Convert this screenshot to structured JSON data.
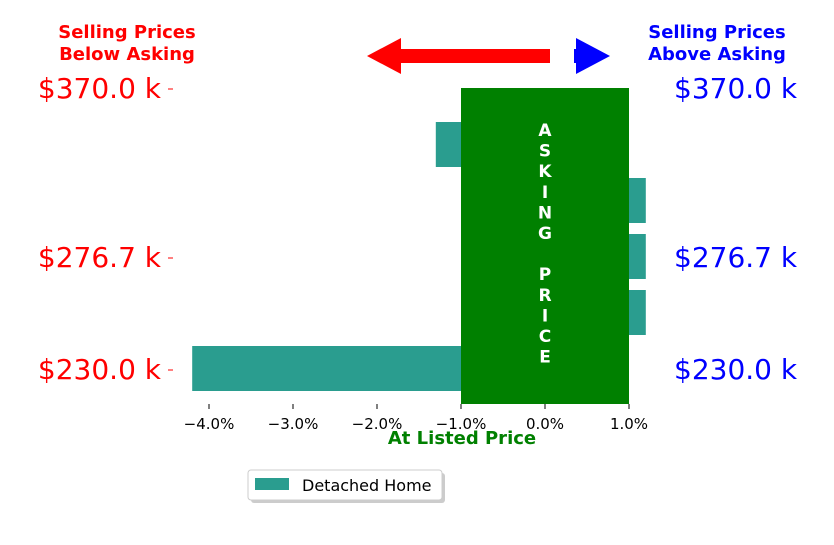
{
  "header": {
    "left_title": [
      "Selling Prices",
      "Below Asking"
    ],
    "right_title": [
      "Selling Prices",
      "Above Asking"
    ]
  },
  "center_label": "At Listed Price",
  "asking_price_letters": [
    "A",
    "S",
    "K",
    "I",
    "N",
    "G",
    "",
    "P",
    "R",
    "I",
    "C",
    "E"
  ],
  "colors": {
    "below": "#ff0000",
    "above": "#0000ff",
    "asking_box": "#008000",
    "bar": "#2a9d8f",
    "label_green": "#008000"
  },
  "icons": {
    "left_arrow": "left-arrow-icon",
    "right_arrow": "right-arrow-icon"
  },
  "chart_data": {
    "type": "bar",
    "orientation": "horizontal",
    "xlim": [
      -4.3,
      1.2
    ],
    "xticks": [
      -4.0,
      -3.0,
      -2.0,
      -1.0,
      0.0,
      1.0
    ],
    "xtick_labels": [
      "−4.0%",
      "−3.0%",
      "−2.0%",
      "−1.0%",
      "0.0%",
      "1.0%"
    ],
    "ylabels_left": [
      "$370.0 k",
      "$276.7 k",
      "$230.0 k"
    ],
    "ylabels_right": [
      "$370.0 k",
      "$276.7 k",
      "$230.0 k"
    ],
    "series": [
      {
        "name": "Detached Home",
        "values": [
          -1.3,
          1.2,
          1.2,
          1.2,
          -4.2
        ]
      }
    ],
    "asking_band": [
      -1.0,
      1.0
    ],
    "legend": "lower-left",
    "grid": false
  }
}
